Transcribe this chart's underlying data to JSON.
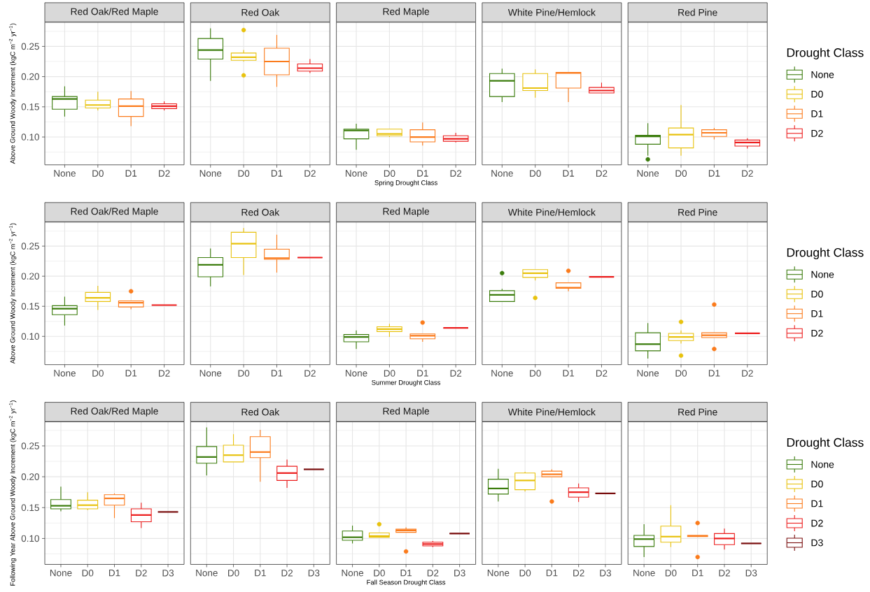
{
  "chart_data": [
    {
      "type": "box",
      "title": "Red Oak/Red Maple",
      "ylabel": "Above Ground Woody Increment (kgC m$^{−2}$ yr$^{−1}$)",
      "categories": [
        "None",
        "D0",
        "D1",
        "D2"
      ],
      "ylim": [
        0.054,
        0.29
      ],
      "yticks": [
        {
          "value": 0.075,
          "label": null
        },
        {
          "value": 0.1,
          "label": "0.10"
        },
        {
          "value": 0.125,
          "label": null
        },
        {
          "value": 0.15,
          "label": "0.15"
        },
        {
          "value": 0.175,
          "label": null
        },
        {
          "value": 0.2,
          "label": "0.20"
        },
        {
          "value": 0.225,
          "label": null
        },
        {
          "value": 0.25,
          "label": "0.25"
        },
        {
          "value": 0.275,
          "label": null
        }
      ],
      "grid": true,
      "series": [
        {
          "color": "#3b7c0c",
          "boxes": [
            {
              "low": 0.134,
              "q1": 0.146,
              "median": 0.163,
              "q3": 0.167,
              "high": 0.184
            },
            null,
            null,
            null
          ]
        },
        {
          "color": "#e8c20e",
          "boxes": [
            null,
            {
              "low": 0.144,
              "q1": 0.148,
              "median": 0.153,
              "q3": 0.161,
              "high": 0.175
            },
            null,
            null
          ]
        },
        {
          "color": "#fb7b1c",
          "boxes": [
            null,
            null,
            {
              "low": 0.118,
              "q1": 0.134,
              "median": 0.151,
              "q3": 0.163,
              "high": 0.176
            },
            null
          ]
        },
        {
          "color": "#ec1c1c",
          "boxes": [
            null,
            null,
            null,
            {
              "low": 0.144,
              "q1": 0.147,
              "median": 0.151,
              "q3": 0.155,
              "high": 0.159
            }
          ]
        }
      ]
    },
    {
      "type": "box",
      "title": "Red Oak",
      "categories": [
        "None",
        "D0",
        "D1",
        "D2"
      ],
      "ylim": [
        0.054,
        0.29
      ],
      "yticks": [
        {
          "value": 0.075,
          "label": null
        },
        0.1,
        {
          "value": 0.125,
          "label": null
        },
        0.15,
        {
          "value": 0.175,
          "label": null
        },
        0.2,
        {
          "value": 0.225,
          "label": null
        },
        0.25,
        {
          "value": 0.275,
          "label": null
        }
      ],
      "grid": true,
      "tick_labels": "x",
      "series": [
        {
          "color": "#3b7c0c",
          "boxes": [
            {
              "low": 0.193,
              "q1": 0.229,
              "median": 0.244,
              "q3": 0.263,
              "high": 0.28
            },
            null,
            null,
            null
          ]
        },
        {
          "color": "#e8c20e",
          "boxes": [
            null,
            {
              "low": 0.225,
              "q1": 0.227,
              "median": 0.232,
              "q3": 0.239,
              "high": 0.244,
              "outliers": [
                0.277,
                0.202
              ]
            },
            null,
            null
          ]
        },
        {
          "color": "#fb7b1c",
          "boxes": [
            null,
            null,
            {
              "low": 0.183,
              "q1": 0.203,
              "median": 0.225,
              "q3": 0.247,
              "high": 0.269
            },
            null
          ]
        },
        {
          "color": "#ec1c1c",
          "boxes": [
            null,
            null,
            null,
            {
              "low": 0.206,
              "q1": 0.209,
              "median": 0.214,
              "q3": 0.221,
              "high": 0.229
            }
          ]
        }
      ]
    },
    {
      "type": "box",
      "title": "Red Maple",
      "xlabel": "Spring Drought Class",
      "categories": [
        "None",
        "D0",
        "D1",
        "D2"
      ],
      "ylim": [
        0.054,
        0.29
      ],
      "yticks": [
        {
          "value": 0.075,
          "label": null
        },
        0.1,
        {
          "value": 0.125,
          "label": null
        },
        0.15,
        {
          "value": 0.175,
          "label": null
        },
        0.2,
        {
          "value": 0.225,
          "label": null
        },
        0.25,
        {
          "value": 0.275,
          "label": null
        }
      ],
      "grid": true,
      "tick_labels": "x",
      "series": [
        {
          "color": "#3b7c0c",
          "boxes": [
            {
              "low": 0.079,
              "q1": 0.097,
              "median": 0.111,
              "q3": 0.113,
              "high": 0.122
            },
            null,
            null,
            null
          ]
        },
        {
          "color": "#e8c20e",
          "boxes": [
            null,
            {
              "low": 0.1,
              "q1": 0.102,
              "median": 0.105,
              "q3": 0.113,
              "high": 0.113
            },
            null,
            null
          ]
        },
        {
          "color": "#fb7b1c",
          "boxes": [
            null,
            null,
            {
              "low": 0.086,
              "q1": 0.092,
              "median": 0.1,
              "q3": 0.112,
              "high": 0.124
            },
            null
          ]
        },
        {
          "color": "#ec1c1c",
          "boxes": [
            null,
            null,
            null,
            {
              "low": 0.091,
              "q1": 0.093,
              "median": 0.097,
              "q3": 0.102,
              "high": 0.107
            }
          ]
        }
      ]
    },
    {
      "type": "box",
      "title": "White Pine/Hemlock",
      "categories": [
        "None",
        "D0",
        "D1",
        "D2"
      ],
      "ylim": [
        0.054,
        0.29
      ],
      "yticks": [
        {
          "value": 0.075,
          "label": null
        },
        0.1,
        {
          "value": 0.125,
          "label": null
        },
        0.15,
        {
          "value": 0.175,
          "label": null
        },
        0.2,
        {
          "value": 0.225,
          "label": null
        },
        0.25,
        {
          "value": 0.275,
          "label": null
        }
      ],
      "grid": true,
      "tick_labels": "x",
      "series": [
        {
          "color": "#3b7c0c",
          "boxes": [
            {
              "low": 0.158,
              "q1": 0.167,
              "median": 0.193,
              "q3": 0.205,
              "high": 0.213
            },
            null,
            null,
            null
          ]
        },
        {
          "color": "#e8c20e",
          "boxes": [
            null,
            {
              "low": 0.165,
              "q1": 0.177,
              "median": 0.181,
              "q3": 0.205,
              "high": 0.212
            },
            null,
            null
          ]
        },
        {
          "color": "#fb7b1c",
          "boxes": [
            null,
            null,
            {
              "low": 0.158,
              "q1": 0.181,
              "median": 0.206,
              "q3": 0.207,
              "high": 0.207
            },
            null
          ]
        },
        {
          "color": "#ec1c1c",
          "boxes": [
            null,
            null,
            null,
            {
              "low": 0.173,
              "q1": 0.173,
              "median": 0.177,
              "q3": 0.182,
              "high": 0.19
            }
          ]
        }
      ]
    },
    {
      "type": "box",
      "title": "Red Pine",
      "categories": [
        "None",
        "D0",
        "D1",
        "D2"
      ],
      "ylim": [
        0.054,
        0.29
      ],
      "yticks": [
        {
          "value": 0.075,
          "label": null
        },
        0.1,
        {
          "value": 0.125,
          "label": null
        },
        0.15,
        {
          "value": 0.175,
          "label": null
        },
        0.2,
        {
          "value": 0.225,
          "label": null
        },
        0.25,
        {
          "value": 0.275,
          "label": null
        }
      ],
      "grid": true,
      "tick_labels": "x",
      "legend": "right",
      "legend_title": "Drought Class",
      "series": [
        {
          "name": "None",
          "color": "#3b7c0c",
          "boxes": [
            {
              "low": 0.069,
              "q1": 0.088,
              "median": 0.101,
              "q3": 0.103,
              "high": 0.123,
              "outliers": [
                0.063
              ]
            },
            null,
            null,
            null
          ]
        },
        {
          "name": "D0",
          "color": "#e8c20e",
          "boxes": [
            null,
            {
              "low": 0.069,
              "q1": 0.082,
              "median": 0.104,
              "q3": 0.115,
              "high": 0.153
            },
            null,
            null
          ]
        },
        {
          "name": "D1",
          "color": "#fb7b1c",
          "boxes": [
            null,
            null,
            {
              "low": 0.096,
              "q1": 0.101,
              "median": 0.107,
              "q3": 0.112,
              "high": 0.115
            },
            null
          ]
        },
        {
          "name": "D2",
          "color": "#ec1c1c",
          "boxes": [
            null,
            null,
            null,
            {
              "low": 0.081,
              "q1": 0.085,
              "median": 0.091,
              "q3": 0.095,
              "high": 0.098
            }
          ]
        }
      ]
    },
    {
      "type": "box",
      "title": "Red Oak/Red Maple",
      "ylabel": "Above Ground Woody Increment (kgC m$^{−2}$ yr$^{−1}$)",
      "categories": [
        "None",
        "D0",
        "D1",
        "D2"
      ],
      "ylim": [
        0.053,
        0.29
      ],
      "yticks": [
        {
          "value": 0.075,
          "label": null
        },
        {
          "value": 0.1,
          "label": "0.10"
        },
        {
          "value": 0.125,
          "label": null
        },
        {
          "value": 0.15,
          "label": "0.15"
        },
        {
          "value": 0.175,
          "label": null
        },
        {
          "value": 0.2,
          "label": "0.20"
        },
        {
          "value": 0.225,
          "label": null
        },
        {
          "value": 0.25,
          "label": "0.25"
        },
        {
          "value": 0.275,
          "label": null
        }
      ],
      "grid": true,
      "series": [
        {
          "color": "#3b7c0c",
          "boxes": [
            {
              "low": 0.118,
              "q1": 0.136,
              "median": 0.146,
              "q3": 0.151,
              "high": 0.166
            },
            null,
            null,
            null
          ]
        },
        {
          "color": "#e8c20e",
          "boxes": [
            null,
            {
              "low": 0.144,
              "q1": 0.158,
              "median": 0.164,
              "q3": 0.173,
              "high": 0.184
            },
            null,
            null
          ]
        },
        {
          "color": "#fb7b1c",
          "boxes": [
            null,
            null,
            {
              "low": 0.145,
              "q1": 0.149,
              "median": 0.156,
              "q3": 0.159,
              "high": 0.159,
              "outliers": [
                0.175
              ]
            },
            null
          ]
        },
        {
          "color": "#ec1c1c",
          "boxes": [
            null,
            null,
            null,
            {
              "low": 0.152,
              "q1": 0.152,
              "median": 0.152,
              "q3": 0.152,
              "high": 0.152
            }
          ]
        }
      ]
    },
    {
      "type": "box",
      "title": "Red Oak",
      "categories": [
        "None",
        "D0",
        "D1",
        "D2"
      ],
      "ylim": [
        0.053,
        0.29
      ],
      "yticks": [
        {
          "value": 0.075,
          "label": null
        },
        0.1,
        {
          "value": 0.125,
          "label": null
        },
        0.15,
        {
          "value": 0.175,
          "label": null
        },
        0.2,
        {
          "value": 0.225,
          "label": null
        },
        0.25,
        {
          "value": 0.275,
          "label": null
        }
      ],
      "grid": true,
      "tick_labels": "x",
      "series": [
        {
          "color": "#3b7c0c",
          "boxes": [
            {
              "low": 0.183,
              "q1": 0.199,
              "median": 0.219,
              "q3": 0.231,
              "high": 0.246
            },
            null,
            null,
            null
          ]
        },
        {
          "color": "#e8c20e",
          "boxes": [
            null,
            {
              "low": 0.202,
              "q1": 0.231,
              "median": 0.254,
              "q3": 0.273,
              "high": 0.28
            },
            null,
            null
          ]
        },
        {
          "color": "#fb7b1c",
          "boxes": [
            null,
            null,
            {
              "low": 0.206,
              "q1": 0.228,
              "median": 0.23,
              "q3": 0.245,
              "high": 0.269
            },
            null
          ]
        },
        {
          "color": "#ec1c1c",
          "boxes": [
            null,
            null,
            null,
            {
              "low": 0.231,
              "q1": 0.231,
              "median": 0.231,
              "q3": 0.231,
              "high": 0.231
            }
          ]
        }
      ]
    },
    {
      "type": "box",
      "title": "Red Maple",
      "xlabel": "Summer Drought Class",
      "categories": [
        "None",
        "D0",
        "D1",
        "D2"
      ],
      "ylim": [
        0.053,
        0.29
      ],
      "yticks": [
        {
          "value": 0.075,
          "label": null
        },
        0.1,
        {
          "value": 0.125,
          "label": null
        },
        0.15,
        {
          "value": 0.175,
          "label": null
        },
        0.2,
        {
          "value": 0.225,
          "label": null
        },
        0.25,
        {
          "value": 0.275,
          "label": null
        }
      ],
      "grid": true,
      "tick_labels": "x",
      "series": [
        {
          "color": "#3b7c0c",
          "boxes": [
            {
              "low": 0.079,
              "q1": 0.091,
              "median": 0.099,
              "q3": 0.103,
              "high": 0.11
            },
            null,
            null,
            null
          ]
        },
        {
          "color": "#e8c20e",
          "boxes": [
            null,
            {
              "low": 0.099,
              "q1": 0.108,
              "median": 0.112,
              "q3": 0.116,
              "high": 0.121
            },
            null,
            null
          ]
        },
        {
          "color": "#fb7b1c",
          "boxes": [
            null,
            null,
            {
              "low": 0.091,
              "q1": 0.096,
              "median": 0.101,
              "q3": 0.104,
              "high": 0.104,
              "outliers": [
                0.123
              ]
            },
            null
          ]
        },
        {
          "color": "#ec1c1c",
          "boxes": [
            null,
            null,
            null,
            {
              "low": 0.114,
              "q1": 0.114,
              "median": 0.114,
              "q3": 0.114,
              "high": 0.114
            }
          ]
        }
      ]
    },
    {
      "type": "box",
      "title": "White Pine/Hemlock",
      "categories": [
        "None",
        "D0",
        "D1",
        "D2"
      ],
      "ylim": [
        0.053,
        0.29
      ],
      "yticks": [
        {
          "value": 0.075,
          "label": null
        },
        0.1,
        {
          "value": 0.125,
          "label": null
        },
        0.15,
        {
          "value": 0.175,
          "label": null
        },
        0.2,
        {
          "value": 0.225,
          "label": null
        },
        0.25,
        {
          "value": 0.275,
          "label": null
        }
      ],
      "grid": true,
      "tick_labels": "x",
      "series": [
        {
          "color": "#3b7c0c",
          "boxes": [
            {
              "low": 0.158,
              "q1": 0.158,
              "median": 0.169,
              "q3": 0.176,
              "high": 0.179,
              "outliers": [
                0.205
              ]
            },
            null,
            null,
            null
          ]
        },
        {
          "color": "#e8c20e",
          "boxes": [
            null,
            {
              "low": 0.193,
              "q1": 0.198,
              "median": 0.205,
              "q3": 0.211,
              "high": 0.211,
              "outliers": [
                0.164
              ]
            },
            null,
            null
          ]
        },
        {
          "color": "#fb7b1c",
          "boxes": [
            null,
            null,
            {
              "low": 0.175,
              "q1": 0.18,
              "median": 0.181,
              "q3": 0.189,
              "high": 0.189,
              "outliers": [
                0.209
              ]
            },
            null
          ]
        },
        {
          "color": "#ec1c1c",
          "boxes": [
            null,
            null,
            null,
            {
              "low": 0.199,
              "q1": 0.199,
              "median": 0.199,
              "q3": 0.199,
              "high": 0.199
            }
          ]
        }
      ]
    },
    {
      "type": "box",
      "title": "Red Pine",
      "categories": [
        "None",
        "D0",
        "D1",
        "D2"
      ],
      "ylim": [
        0.053,
        0.29
      ],
      "yticks": [
        {
          "value": 0.075,
          "label": null
        },
        0.1,
        {
          "value": 0.125,
          "label": null
        },
        0.15,
        {
          "value": 0.175,
          "label": null
        },
        0.2,
        {
          "value": 0.225,
          "label": null
        },
        0.25,
        {
          "value": 0.275,
          "label": null
        }
      ],
      "grid": true,
      "tick_labels": "x",
      "legend": "right",
      "legend_title": "Drought Class",
      "series": [
        {
          "name": "None",
          "color": "#3b7c0c",
          "boxes": [
            {
              "low": 0.063,
              "q1": 0.076,
              "median": 0.087,
              "q3": 0.106,
              "high": 0.122
            },
            null,
            null,
            null
          ]
        },
        {
          "name": "D0",
          "color": "#e8c20e",
          "boxes": [
            null,
            {
              "low": 0.088,
              "q1": 0.093,
              "median": 0.099,
              "q3": 0.105,
              "high": 0.11,
              "outliers": [
                0.124,
                0.068
              ]
            },
            null,
            null
          ]
        },
        {
          "name": "D1",
          "color": "#fb7b1c",
          "boxes": [
            null,
            null,
            {
              "low": 0.098,
              "q1": 0.098,
              "median": 0.102,
              "q3": 0.106,
              "high": 0.106,
              "outliers": [
                0.153,
                0.079
              ]
            },
            null
          ]
        },
        {
          "name": "D2",
          "color": "#ec1c1c",
          "boxes": [
            null,
            null,
            null,
            {
              "low": 0.105,
              "q1": 0.105,
              "median": 0.105,
              "q3": 0.105,
              "high": 0.105
            }
          ]
        }
      ]
    },
    {
      "type": "box",
      "title": "Red Oak/Red Maple",
      "ylabel": "Following Year Above Ground Woody Increment (kgC m$^{−2}$ yr$^{−1}$)",
      "categories": [
        "None",
        "D0",
        "D1",
        "D2",
        "D3"
      ],
      "ylim": [
        0.058,
        0.289
      ],
      "yticks": [
        {
          "value": 0.075,
          "label": null
        },
        {
          "value": 0.1,
          "label": "0.10"
        },
        {
          "value": 0.125,
          "label": null
        },
        {
          "value": 0.15,
          "label": "0.15"
        },
        {
          "value": 0.175,
          "label": null
        },
        {
          "value": 0.2,
          "label": "0.20"
        },
        {
          "value": 0.225,
          "label": null
        },
        {
          "value": 0.25,
          "label": "0.25"
        },
        {
          "value": 0.275,
          "label": null
        }
      ],
      "grid": true,
      "series": [
        {
          "color": "#3b7c0c",
          "boxes": [
            {
              "low": 0.144,
              "q1": 0.148,
              "median": 0.153,
              "q3": 0.163,
              "high": 0.184
            },
            null,
            null,
            null,
            null
          ]
        },
        {
          "color": "#e8c20e",
          "boxes": [
            null,
            {
              "low": 0.146,
              "q1": 0.148,
              "median": 0.154,
              "q3": 0.162,
              "high": 0.175
            },
            null,
            null,
            null
          ]
        },
        {
          "color": "#fb7b1c",
          "boxes": [
            null,
            null,
            {
              "low": 0.133,
              "q1": 0.154,
              "median": 0.165,
              "q3": 0.171,
              "high": 0.173
            },
            null,
            null
          ]
        },
        {
          "color": "#ec1c1c",
          "boxes": [
            null,
            null,
            null,
            {
              "low": 0.117,
              "q1": 0.127,
              "median": 0.138,
              "q3": 0.148,
              "high": 0.158
            },
            null
          ]
        },
        {
          "color": "#780c0c",
          "boxes": [
            null,
            null,
            null,
            null,
            {
              "low": 0.143,
              "q1": 0.143,
              "median": 0.143,
              "q3": 0.143,
              "high": 0.143
            }
          ]
        }
      ]
    },
    {
      "type": "box",
      "title": "Red Oak",
      "categories": [
        "None",
        "D0",
        "D1",
        "D2",
        "D3"
      ],
      "ylim": [
        0.058,
        0.289
      ],
      "yticks": [
        {
          "value": 0.075,
          "label": null
        },
        0.1,
        {
          "value": 0.125,
          "label": null
        },
        0.15,
        {
          "value": 0.175,
          "label": null
        },
        0.2,
        {
          "value": 0.225,
          "label": null
        },
        0.25,
        {
          "value": 0.275,
          "label": null
        }
      ],
      "grid": true,
      "tick_labels": "x",
      "series": [
        {
          "color": "#3b7c0c",
          "boxes": [
            {
              "low": 0.202,
              "q1": 0.222,
              "median": 0.232,
              "q3": 0.249,
              "high": 0.28
            },
            null,
            null,
            null,
            null
          ]
        },
        {
          "color": "#e8c20e",
          "boxes": [
            null,
            {
              "low": 0.224,
              "q1": 0.224,
              "median": 0.235,
              "q3": 0.251,
              "high": 0.269
            },
            null,
            null,
            null
          ]
        },
        {
          "color": "#fb7b1c",
          "boxes": [
            null,
            null,
            {
              "low": 0.192,
              "q1": 0.231,
              "median": 0.24,
              "q3": 0.265,
              "high": 0.276
            },
            null,
            null
          ]
        },
        {
          "color": "#ec1c1c",
          "boxes": [
            null,
            null,
            null,
            {
              "low": 0.182,
              "q1": 0.194,
              "median": 0.206,
              "q3": 0.217,
              "high": 0.228
            },
            null
          ]
        },
        {
          "color": "#780c0c",
          "boxes": [
            null,
            null,
            null,
            null,
            {
              "low": 0.212,
              "q1": 0.212,
              "median": 0.212,
              "q3": 0.212,
              "high": 0.212
            }
          ]
        }
      ]
    },
    {
      "type": "box",
      "title": "Red Maple",
      "xlabel": "Fall Season Drought Class",
      "categories": [
        "None",
        "D0",
        "D1",
        "D2",
        "D3"
      ],
      "ylim": [
        0.058,
        0.289
      ],
      "yticks": [
        {
          "value": 0.075,
          "label": null
        },
        0.1,
        {
          "value": 0.125,
          "label": null
        },
        0.15,
        {
          "value": 0.175,
          "label": null
        },
        0.2,
        {
          "value": 0.225,
          "label": null
        },
        0.25,
        {
          "value": 0.275,
          "label": null
        }
      ],
      "grid": true,
      "tick_labels": "x",
      "series": [
        {
          "color": "#3b7c0c",
          "boxes": [
            {
              "low": 0.092,
              "q1": 0.097,
              "median": 0.102,
              "q3": 0.112,
              "high": 0.121
            },
            null,
            null,
            null,
            null
          ]
        },
        {
          "color": "#e8c20e",
          "boxes": [
            null,
            {
              "low": 0.102,
              "q1": 0.102,
              "median": 0.104,
              "q3": 0.109,
              "high": 0.109,
              "outliers": [
                0.123
              ]
            },
            null,
            null,
            null
          ]
        },
        {
          "color": "#fb7b1c",
          "boxes": [
            null,
            null,
            {
              "low": 0.11,
              "q1": 0.11,
              "median": 0.113,
              "q3": 0.115,
              "high": 0.118,
              "outliers": [
                0.079
              ]
            },
            null,
            null
          ]
        },
        {
          "color": "#ec1c1c",
          "boxes": [
            null,
            null,
            null,
            {
              "low": 0.086,
              "q1": 0.088,
              "median": 0.091,
              "q3": 0.094,
              "high": 0.096
            },
            null
          ]
        },
        {
          "color": "#780c0c",
          "boxes": [
            null,
            null,
            null,
            null,
            {
              "low": 0.108,
              "q1": 0.108,
              "median": 0.108,
              "q3": 0.108,
              "high": 0.108
            }
          ]
        }
      ]
    },
    {
      "type": "box",
      "title": "White Pine/Hemlock",
      "categories": [
        "None",
        "D0",
        "D1",
        "D2",
        "D3"
      ],
      "ylim": [
        0.058,
        0.289
      ],
      "yticks": [
        {
          "value": 0.075,
          "label": null
        },
        0.1,
        {
          "value": 0.125,
          "label": null
        },
        0.15,
        {
          "value": 0.175,
          "label": null
        },
        0.2,
        {
          "value": 0.225,
          "label": null
        },
        0.25,
        {
          "value": 0.275,
          "label": null
        }
      ],
      "grid": true,
      "tick_labels": "x",
      "series": [
        {
          "color": "#3b7c0c",
          "boxes": [
            {
              "low": 0.16,
              "q1": 0.172,
              "median": 0.181,
              "q3": 0.196,
              "high": 0.213
            },
            null,
            null,
            null,
            null
          ]
        },
        {
          "color": "#e8c20e",
          "boxes": [
            null,
            {
              "low": 0.176,
              "q1": 0.179,
              "median": 0.194,
              "q3": 0.206,
              "high": 0.208
            },
            null,
            null,
            null
          ]
        },
        {
          "color": "#fb7b1c",
          "boxes": [
            null,
            null,
            {
              "low": 0.2,
              "q1": 0.2,
              "median": 0.204,
              "q3": 0.209,
              "high": 0.212,
              "outliers": [
                0.16
              ]
            },
            null,
            null
          ]
        },
        {
          "color": "#ec1c1c",
          "boxes": [
            null,
            null,
            null,
            {
              "low": 0.159,
              "q1": 0.167,
              "median": 0.175,
              "q3": 0.182,
              "high": 0.189
            },
            null
          ]
        },
        {
          "color": "#780c0c",
          "boxes": [
            null,
            null,
            null,
            null,
            {
              "low": 0.173,
              "q1": 0.173,
              "median": 0.173,
              "q3": 0.173,
              "high": 0.173
            }
          ]
        }
      ]
    },
    {
      "type": "box",
      "title": "Red Pine",
      "categories": [
        "None",
        "D0",
        "D1",
        "D2",
        "D3"
      ],
      "ylim": [
        0.058,
        0.289
      ],
      "yticks": [
        {
          "value": 0.075,
          "label": null
        },
        0.1,
        {
          "value": 0.125,
          "label": null
        },
        0.15,
        {
          "value": 0.175,
          "label": null
        },
        0.2,
        {
          "value": 0.225,
          "label": null
        },
        0.25,
        {
          "value": 0.275,
          "label": null
        }
      ],
      "grid": true,
      "tick_labels": "x",
      "legend": "right",
      "legend_title": "Drought Class",
      "series": [
        {
          "name": "None",
          "color": "#3b7c0c",
          "boxes": [
            {
              "low": 0.07,
              "q1": 0.087,
              "median": 0.099,
              "q3": 0.105,
              "high": 0.123
            },
            null,
            null,
            null,
            null
          ]
        },
        {
          "name": "D0",
          "color": "#e8c20e",
          "boxes": [
            null,
            {
              "low": 0.086,
              "q1": 0.094,
              "median": 0.103,
              "q3": 0.12,
              "high": 0.154
            },
            null,
            null,
            null
          ]
        },
        {
          "name": "D1",
          "color": "#fb7b1c",
          "boxes": [
            null,
            null,
            {
              "low": 0.103,
              "q1": 0.103,
              "median": 0.104,
              "q3": 0.105,
              "high": 0.105,
              "outliers": [
                0.125,
                0.07
              ]
            },
            null,
            null
          ]
        },
        {
          "name": "D2",
          "color": "#ec1c1c",
          "boxes": [
            null,
            null,
            null,
            {
              "low": 0.082,
              "q1": 0.09,
              "median": 0.1,
              "q3": 0.108,
              "high": 0.116
            },
            null
          ]
        },
        {
          "name": "D3",
          "color": "#780c0c",
          "boxes": [
            null,
            null,
            null,
            null,
            {
              "low": 0.092,
              "q1": 0.092,
              "median": 0.092,
              "q3": 0.092,
              "high": 0.092
            }
          ]
        }
      ]
    }
  ]
}
